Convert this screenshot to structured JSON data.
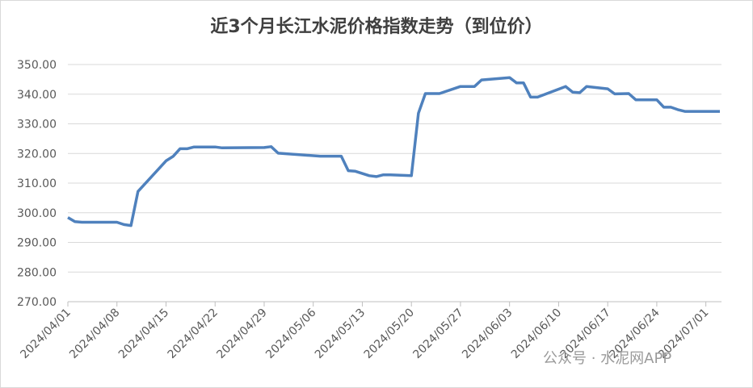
{
  "chart_data": {
    "type": "line",
    "title": "近3个月长江水泥价格指数走势（到位价）",
    "watermark": "公众号 · 水泥网APP",
    "color": "#4f81bd",
    "x": [
      "2024/04/01",
      "2024/04/02",
      "2024/04/03",
      "2024/04/08",
      "2024/04/09",
      "2024/04/10",
      "2024/04/11",
      "2024/04/15",
      "2024/04/16",
      "2024/04/17",
      "2024/04/18",
      "2024/04/19",
      "2024/04/22",
      "2024/04/23",
      "2024/04/29",
      "2024/04/30",
      "2024/05/01",
      "2024/05/07",
      "2024/05/10",
      "2024/05/11",
      "2024/05/12",
      "2024/05/14",
      "2024/05/15",
      "2024/05/16",
      "2024/05/17",
      "2024/05/20",
      "2024/05/21",
      "2024/05/22",
      "2024/05/24",
      "2024/05/27",
      "2024/05/29",
      "2024/05/30",
      "2024/06/03",
      "2024/06/04",
      "2024/06/05",
      "2024/06/06",
      "2024/06/07",
      "2024/06/11",
      "2024/06/12",
      "2024/06/13",
      "2024/06/14",
      "2024/06/17",
      "2024/06/18",
      "2024/06/20",
      "2024/06/21",
      "2024/06/24",
      "2024/06/25",
      "2024/06/26",
      "2024/06/27",
      "2024/06/28",
      "2024/07/03"
    ],
    "values": [
      298.4,
      297.0,
      296.8,
      296.8,
      296.0,
      295.7,
      307.2,
      317.5,
      319.0,
      321.6,
      321.6,
      322.2,
      322.2,
      321.9,
      322.0,
      322.3,
      320.1,
      319.1,
      319.1,
      314.2,
      314.0,
      312.5,
      312.2,
      312.8,
      312.8,
      312.5,
      333.6,
      340.2,
      340.2,
      342.6,
      342.6,
      344.8,
      345.6,
      343.8,
      343.8,
      339.0,
      339.0,
      342.6,
      340.7,
      340.5,
      342.6,
      341.8,
      340.1,
      340.2,
      338.1,
      338.1,
      335.6,
      335.6,
      334.8,
      334.2,
      334.2
    ],
    "xlim": [
      "2024/04/01",
      "2024/07/03"
    ],
    "xticks": [
      "2024/04/01",
      "2024/04/08",
      "2024/04/15",
      "2024/04/22",
      "2024/04/29",
      "2024/05/06",
      "2024/05/13",
      "2024/05/20",
      "2024/05/27",
      "2024/06/03",
      "2024/06/10",
      "2024/06/17",
      "2024/06/24",
      "2024/07/01"
    ],
    "ylim": [
      270,
      350
    ],
    "yticks": [
      {
        "value": 270,
        "label": "270.00"
      },
      {
        "value": 280,
        "label": "280.00"
      },
      {
        "value": 290,
        "label": "290.00"
      },
      {
        "value": 300,
        "label": "300.00"
      },
      {
        "value": 310,
        "label": "310.00"
      },
      {
        "value": 320,
        "label": "320.00"
      },
      {
        "value": 330,
        "label": "330.00"
      },
      {
        "value": 340,
        "label": "340.00"
      },
      {
        "value": 350,
        "label": "350.00"
      }
    ],
    "grid": true
  }
}
